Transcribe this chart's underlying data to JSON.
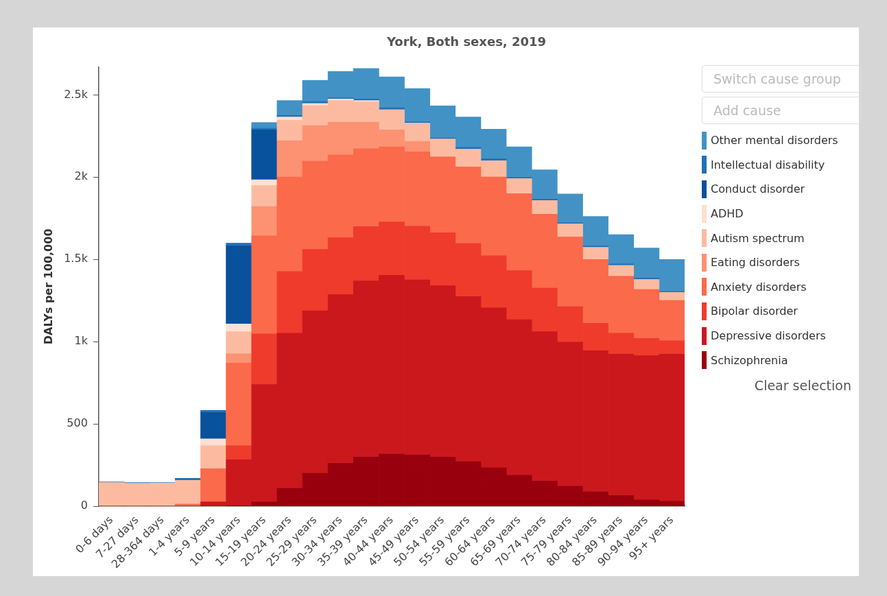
{
  "chart_data": {
    "type": "bar",
    "title": "York, Both sexes, 2019",
    "ylabel": "DALYs per 100,000",
    "stacked": true,
    "legend": "right",
    "grid": false,
    "categories": [
      "0-6 days",
      "7-27 days",
      "28-364 days",
      "1-4 years",
      "5-9 years",
      "10-14 years",
      "15-19 years",
      "20-24 years",
      "25-29 years",
      "30-34 years",
      "35-39 years",
      "40-44 years",
      "45-49 years",
      "50-54 years",
      "55-59 years",
      "60-64 years",
      "65-69 years",
      "70-74 years",
      "75-79 years",
      "80-84 years",
      "85-89 years",
      "90-94 years",
      "95+ years"
    ],
    "ylim": [
      0,
      2670
    ],
    "yticks": [
      0,
      500,
      {
        "value": 1000,
        "label": "1k"
      },
      {
        "value": 1500,
        "label": "1.5k"
      },
      {
        "value": 2000,
        "label": "2k"
      },
      {
        "value": 2500,
        "label": "2.5k"
      }
    ],
    "series": [
      {
        "name": "Schizophrenia",
        "color": "#99000d",
        "values": [
          0,
          0,
          0,
          0,
          0,
          3,
          26,
          108,
          200,
          261,
          299,
          317,
          311,
          299,
          271,
          233,
          190,
          153,
          122,
          87,
          64,
          40,
          30
        ]
      },
      {
        "name": "Depressive disorders",
        "color": "#cb181d",
        "values": [
          0,
          0,
          0,
          0,
          26,
          279,
          714,
          943,
          988,
          1025,
          1070,
          1087,
          1065,
          1041,
          1004,
          973,
          944,
          908,
          875,
          858,
          860,
          875,
          894
        ]
      },
      {
        "name": "Bipolar disorder",
        "color": "#ef3b2c",
        "values": [
          0,
          0,
          0,
          0,
          0,
          87,
          307,
          376,
          373,
          346,
          331,
          324,
          326,
          322,
          322,
          317,
          298,
          265,
          216,
          167,
          129,
          105,
          83
        ]
      },
      {
        "name": "Anxiety disorders",
        "color": "#fb6a4a",
        "values": [
          0,
          0,
          0,
          12,
          202,
          501,
          597,
          574,
          536,
          503,
          473,
          456,
          452,
          461,
          465,
          478,
          468,
          449,
          423,
          388,
          344,
          297,
          244
        ]
      },
      {
        "name": "Eating disorders",
        "color": "#fc9272",
        "values": [
          0,
          0,
          0,
          0,
          0,
          56,
          178,
          221,
          217,
          200,
          162,
          104,
          64,
          0,
          0,
          0,
          0,
          0,
          0,
          0,
          0,
          0,
          0
        ]
      },
      {
        "name": "Autism spectrum",
        "color": "#fcbba1",
        "values": [
          144,
          138,
          141,
          145,
          141,
          135,
          127,
          124,
          122,
          131,
          122,
          122,
          110,
          108,
          108,
          99,
          92,
          83,
          80,
          73,
          66,
          61,
          49
        ]
      },
      {
        "name": "ADHD",
        "color": "#fee0d2",
        "values": [
          0,
          0,
          0,
          0,
          40,
          47,
          35,
          20,
          12,
          9,
          9,
          0,
          0,
          0,
          0,
          0,
          0,
          0,
          0,
          0,
          0,
          0,
          0
        ]
      },
      {
        "name": "Conduct disorder",
        "color": "#08519c",
        "values": [
          0,
          0,
          0,
          0,
          160,
          474,
          304,
          0,
          0,
          0,
          0,
          0,
          0,
          0,
          0,
          0,
          0,
          0,
          0,
          0,
          0,
          0,
          0
        ]
      },
      {
        "name": "Intellectual disability",
        "color": "#2171b5",
        "values": [
          3,
          5,
          2,
          13,
          14,
          17,
          9,
          9,
          12,
          8,
          9,
          12,
          9,
          8,
          11,
          11,
          7,
          9,
          8,
          9,
          11,
          9,
          5
        ]
      },
      {
        "name": "Other mental disorders",
        "color": "#4292c6",
        "values": [
          0,
          0,
          0,
          0,
          0,
          0,
          35,
          91,
          129,
          160,
          186,
          188,
          202,
          194,
          185,
          181,
          185,
          178,
          174,
          179,
          177,
          183,
          195
        ]
      }
    ],
    "annotations": [
      "Switch cause group",
      "Add cause",
      "Clear selection"
    ]
  }
}
